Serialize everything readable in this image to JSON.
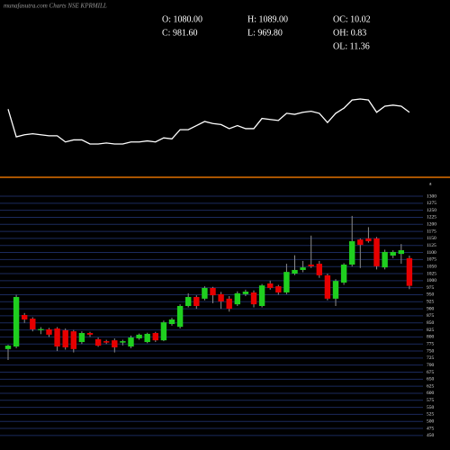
{
  "chart_data": {
    "type": "candlestick",
    "title": "munafasutra.com Charts NSE KPRMILL",
    "stats": [
      "O: 1080.00",
      "H: 1089.00",
      "OC: 10.02",
      "C: 981.60",
      "L: 969.80",
      "OH: 0.83",
      "OL: 11.36"
    ],
    "panel_label": "a",
    "up_color": "#1fcf1f",
    "down_color": "#e60000",
    "wick_color": "#8c8c8c",
    "grid": true,
    "grid_color": "#1b2a5c",
    "divider_color": "#e07000",
    "ylim": [
      440,
      1300
    ],
    "yticks": [
      450,
      475,
      500,
      525,
      550,
      575,
      600,
      625,
      650,
      675,
      700,
      725,
      750,
      775,
      800,
      825,
      850,
      875,
      900,
      925,
      950,
      975,
      1000,
      1025,
      1050,
      1075,
      1100,
      1125,
      1150,
      1175,
      1200,
      1225,
      1250,
      1275,
      1300
    ],
    "open": [
      757,
      766,
      878,
      865,
      824,
      827,
      830,
      824,
      820,
      782,
      814,
      792,
      785,
      788,
      780,
      766,
      795,
      782,
      814,
      788,
      846,
      836,
      910,
      942,
      936,
      974,
      952,
      936,
      916,
      952,
      958,
      910,
      990,
      980,
      958,
      1025,
      1038,
      1057,
      1060,
      1019,
      936,
      993,
      1057,
      1146,
      1150,
      1150,
      1047,
      1089,
      1095,
      1080
    ],
    "high": [
      772,
      950,
      885,
      870,
      835,
      832,
      835,
      830,
      825,
      820,
      818,
      798,
      790,
      795,
      790,
      805,
      812,
      815,
      818,
      858,
      868,
      916,
      955,
      948,
      980,
      978,
      960,
      945,
      962,
      968,
      965,
      988,
      1000,
      985,
      1060,
      1090,
      1070,
      1160,
      1070,
      1025,
      1005,
      1062,
      1230,
      1150,
      1190,
      1155,
      1110,
      1108,
      1130,
      1089
    ],
    "low": [
      718,
      760,
      850,
      820,
      810,
      800,
      750,
      755,
      745,
      775,
      800,
      765,
      775,
      745,
      770,
      760,
      790,
      778,
      782,
      785,
      840,
      830,
      905,
      900,
      930,
      920,
      900,
      890,
      910,
      945,
      905,
      905,
      968,
      950,
      952,
      1020,
      1030,
      1045,
      1010,
      930,
      910,
      985,
      1050,
      1045,
      1135,
      1040,
      1040,
      1080,
      1060,
      969.8
    ],
    "close": [
      769,
      942,
      862,
      827,
      828,
      808,
      766,
      763,
      757,
      814,
      808,
      769,
      780,
      763,
      785,
      798,
      808,
      811,
      788,
      852,
      862,
      910,
      942,
      910,
      974,
      948,
      926,
      900,
      955,
      961,
      916,
      983,
      974,
      958,
      1031,
      1038,
      1047,
      1051,
      1019,
      936,
      999,
      1057,
      1140,
      1127,
      1140,
      1051,
      1102,
      1102,
      1108,
      981.6
    ],
    "indicator": {
      "color": "#ffffff",
      "values": [
        47,
        20,
        22,
        23,
        22,
        21,
        21,
        15,
        17,
        17,
        13,
        13,
        14,
        13,
        13,
        15,
        15,
        16,
        15,
        19,
        18,
        27,
        27,
        31,
        35,
        33,
        32,
        28,
        31,
        28,
        28,
        38,
        37,
        36,
        43,
        42,
        44,
        45,
        43,
        34,
        43,
        48,
        56,
        57,
        56,
        44,
        50,
        51,
        50,
        44
      ]
    }
  }
}
